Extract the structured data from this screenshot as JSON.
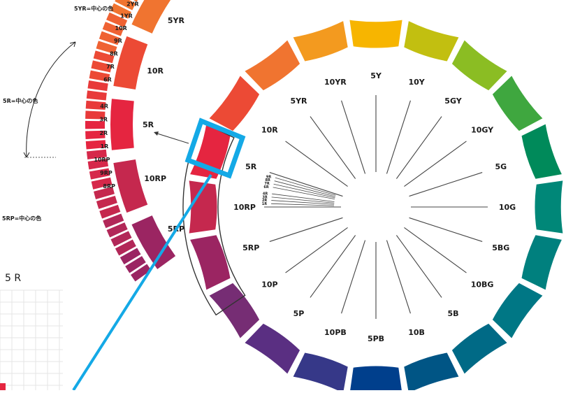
{
  "wheel": {
    "segments": [
      {
        "name": "5Y",
        "color": "#f7b500"
      },
      {
        "name": "10Y",
        "color": "#c2bf10"
      },
      {
        "name": "5GY",
        "color": "#8bbd23"
      },
      {
        "name": "10GY",
        "color": "#3fa73f"
      },
      {
        "name": "5G",
        "color": "#008a5a"
      },
      {
        "name": "10G",
        "color": "#008778"
      },
      {
        "name": "5BG",
        "color": "#00807e"
      },
      {
        "name": "10BG",
        "color": "#007785"
      },
      {
        "name": "5B",
        "color": "#006a86"
      },
      {
        "name": "10B",
        "color": "#005585"
      },
      {
        "name": "5PB",
        "color": "#003f8c"
      },
      {
        "name": "10PB",
        "color": "#363888"
      },
      {
        "name": "5P",
        "color": "#5a2f82"
      },
      {
        "name": "10P",
        "color": "#762d74"
      },
      {
        "name": "5RP",
        "color": "#9b2562"
      },
      {
        "name": "10RP",
        "color": "#c5284e"
      },
      {
        "name": "5R",
        "color": "#e52540"
      },
      {
        "name": "10R",
        "color": "#ec4a35"
      },
      {
        "name": "5YR",
        "color": "#f07430"
      },
      {
        "name": "10YR",
        "color": "#f39a1f"
      }
    ],
    "sub_labels_upper": [
      "9R",
      "8R",
      "7R",
      "6R"
    ],
    "sub_labels_lower": [
      "4R",
      "3R",
      "2R",
      "1R"
    ]
  },
  "inset": {
    "big_segments": [
      {
        "name": "5YR",
        "color": "#f07430"
      },
      {
        "name": "10R",
        "color": "#ec4a35"
      },
      {
        "name": "5R",
        "color": "#e52540"
      },
      {
        "name": "10RP",
        "color": "#c5284e"
      },
      {
        "name": "5RP",
        "color": "#9b2562"
      }
    ],
    "small_labels": [
      "2YR",
      "1YR",
      "10R",
      "9R",
      "8R",
      "7R",
      "6R",
      "4R",
      "3R",
      "2R",
      "1R",
      "10RP",
      "9RP",
      "8RP"
    ],
    "top_note": "5YR=中心の色",
    "mid_note": "5R=中心の色",
    "bottom_note": "5RP=中心の色"
  },
  "hue_label": "5 R",
  "colors": {
    "highlight": "#14a9e6",
    "bracket": "#333333",
    "tick": "#444444",
    "grid": "#e4e4e4"
  }
}
